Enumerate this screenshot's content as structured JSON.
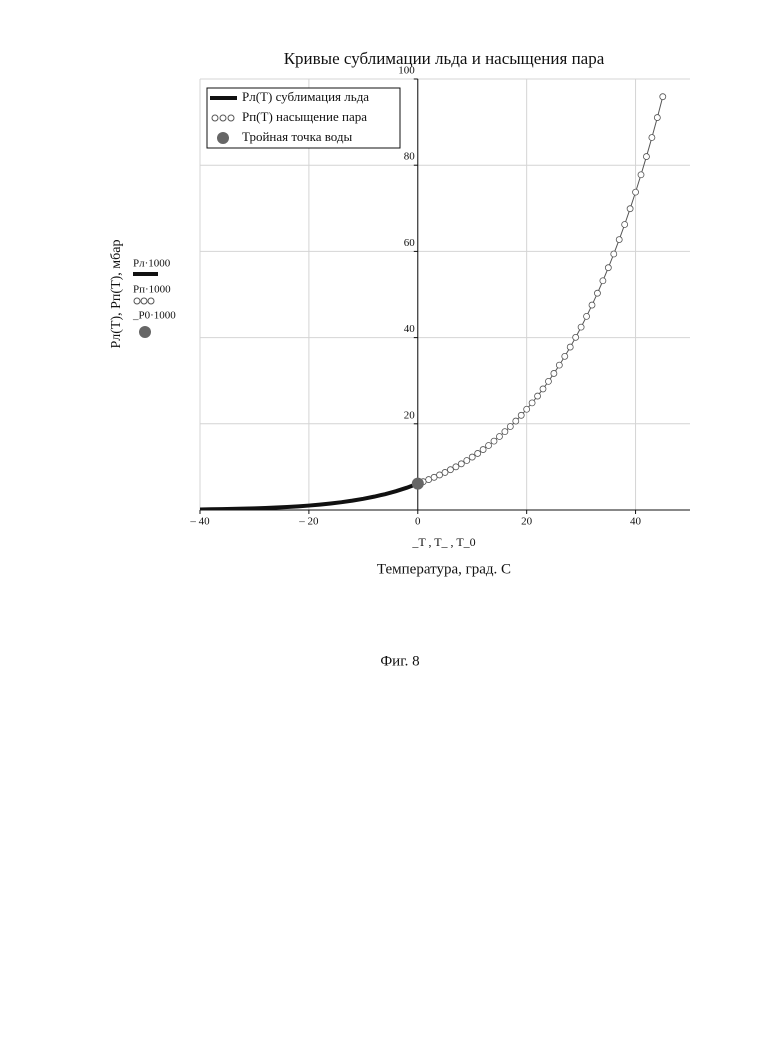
{
  "chart_data": {
    "type": "line",
    "title": "Кривые сублимации льда и насыщения пара",
    "xlabel": "Температура, град. С",
    "x_expr_label": "_T , T_ , T_0",
    "ylabel": "Рл(Т), Рп(Т), мбар",
    "side_labels": [
      "Рл·1000",
      "Рп·1000",
      "_P0·1000"
    ],
    "xlim": [
      -40,
      50
    ],
    "ylim": [
      0,
      100
    ],
    "xticks": [
      {
        "value": -40,
        "label": "– 40"
      },
      {
        "value": -20,
        "label": "– 20"
      },
      0,
      20,
      40
    ],
    "yticks": [
      20,
      40,
      60,
      80,
      100
    ],
    "grid": true,
    "legend": "upper left",
    "series": [
      {
        "name": "Рл(Т) сублимация льда",
        "color": "#111111",
        "style": "thick",
        "x": [
          -40,
          -38,
          -36,
          -34,
          -32,
          -30,
          -28,
          -26,
          -24,
          -22,
          -20,
          -18,
          -16,
          -14,
          -12,
          -10,
          -8,
          -6,
          -4,
          -2,
          0
        ],
        "values": [
          0.13,
          0.16,
          0.2,
          0.25,
          0.31,
          0.38,
          0.47,
          0.57,
          0.7,
          0.85,
          1.03,
          1.25,
          1.51,
          1.81,
          2.17,
          2.6,
          3.1,
          3.68,
          4.37,
          5.17,
          6.11
        ]
      },
      {
        "name": "Рп(Т) насыщение пара",
        "color": "#555555",
        "style": "circles",
        "x": [
          0,
          1,
          2,
          3,
          4,
          5,
          6,
          7,
          8,
          9,
          10,
          11,
          12,
          13,
          14,
          15,
          16,
          17,
          18,
          19,
          20,
          21,
          22,
          23,
          24,
          25,
          26,
          27,
          28,
          29,
          30,
          31,
          32,
          33,
          34,
          35,
          36,
          37,
          38,
          39,
          40,
          41,
          42,
          43,
          44,
          45
        ],
        "values": [
          6.11,
          6.57,
          7.06,
          7.58,
          8.13,
          8.72,
          9.35,
          10.02,
          10.72,
          11.48,
          12.28,
          13.12,
          14.02,
          14.97,
          15.98,
          17.05,
          18.18,
          19.37,
          20.63,
          21.97,
          23.38,
          24.86,
          26.44,
          28.09,
          29.84,
          31.68,
          33.61,
          35.65,
          37.8,
          40.06,
          42.43,
          44.93,
          47.55,
          50.3,
          53.19,
          56.22,
          59.4,
          62.74,
          66.24,
          69.91,
          73.75,
          77.78,
          82.0,
          86.42,
          91.05,
          95.9
        ]
      },
      {
        "name": "Тройная точка воды",
        "color": "#666666",
        "style": "point",
        "x": [
          0.01
        ],
        "values": [
          6.11
        ]
      }
    ]
  },
  "caption": "Фиг. 8"
}
